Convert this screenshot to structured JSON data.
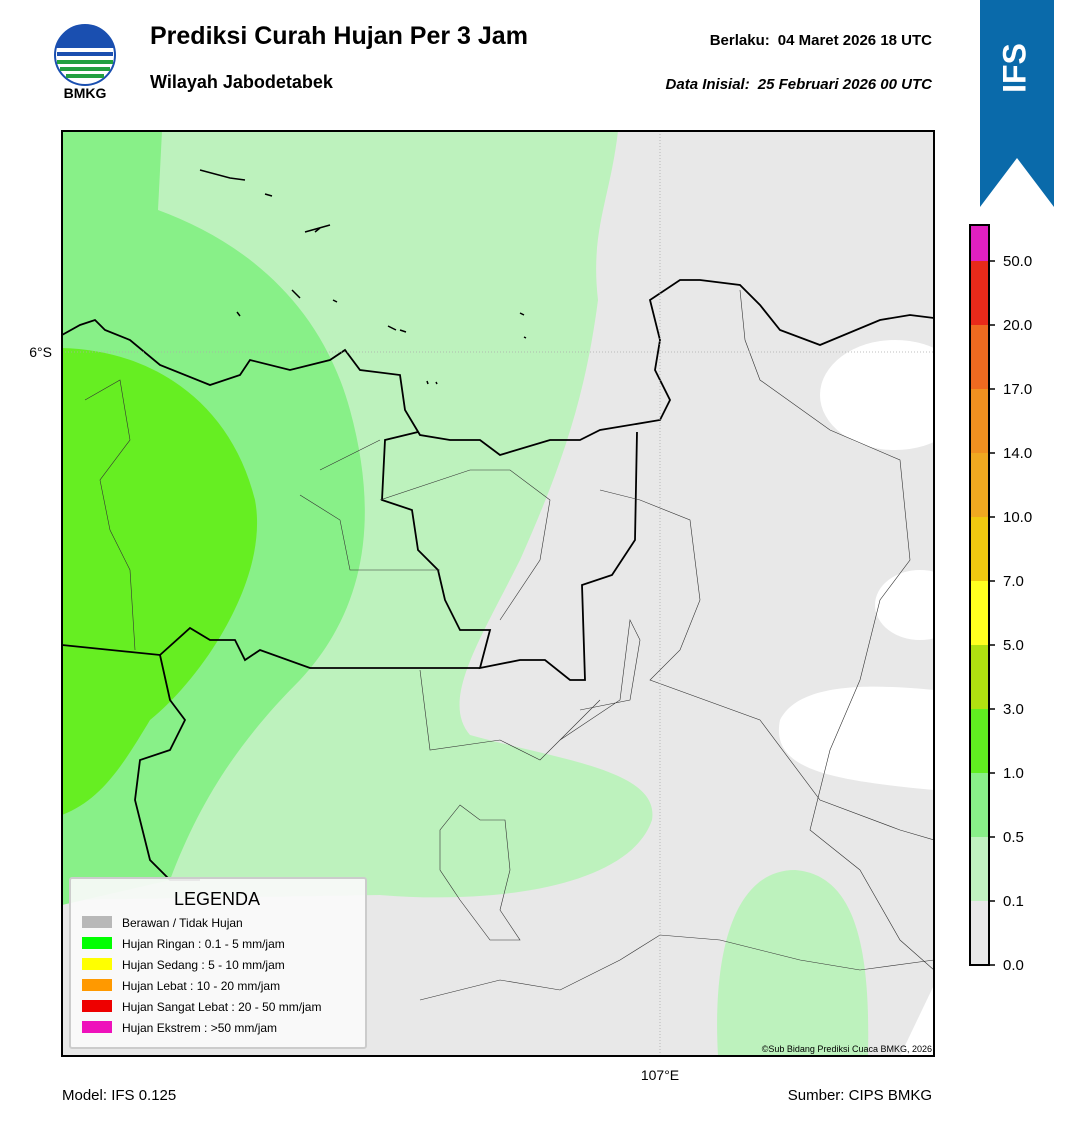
{
  "header": {
    "logo_text": "BMKG",
    "title": "Prediksi Curah Hujan Per 3 Jam",
    "subtitle": "Wilayah Jabodetabek",
    "valid_label": "Berlaku:",
    "valid_time": "04 Maret 2026 18 UTC",
    "init_label": "Data Inisial:",
    "init_time": "25 Februari 2026 00 UTC"
  },
  "badge": "IFS",
  "map": {
    "lat_label": "6°S",
    "lon_label": "107°E",
    "credit": "©Sub Bidang Prediksi Cuaca BMKG, 2026"
  },
  "legend": {
    "title": "LEGENDA",
    "items": [
      {
        "label": "Berawan / Tidak Hujan",
        "color": "#b8b8b8"
      },
      {
        "label": "Hujan Ringan : 0.1 - 5 mm/jam",
        "color": "#00ff00"
      },
      {
        "label": "Hujan Sedang : 5 - 10 mm/jam",
        "color": "#ffff00"
      },
      {
        "label": "Hujan Lebat : 10 - 20 mm/jam",
        "color": "#ff9900"
      },
      {
        "label": "Hujan Sangat Lebat : 20 - 50 mm/jam",
        "color": "#ee0000"
      },
      {
        "label": "Hujan Ekstrem : >50 mm/jam",
        "color": "#ee11bb"
      }
    ]
  },
  "colorbar": {
    "ticks": [
      {
        "value": 0,
        "label": "0.0"
      },
      {
        "value": 0.1,
        "label": "0.1"
      },
      0.5,
      {
        "value": 1,
        "label": "1.0"
      },
      {
        "value": 3,
        "label": "3.0"
      },
      {
        "value": 5,
        "label": "5.0"
      },
      {
        "value": 7,
        "label": "7.0"
      },
      {
        "value": 10,
        "label": "10.0"
      },
      {
        "value": 14,
        "label": "14.0"
      },
      {
        "value": 17,
        "label": "17.0"
      },
      {
        "value": 20,
        "label": "20.0"
      },
      {
        "value": 50,
        "label": "50.0"
      }
    ],
    "colors": [
      "#e8e8e8",
      "#c0f2c0",
      "#88f088",
      "#60ee20",
      "#b0e010",
      "#ffff20",
      "#f0c810",
      "#f0a820",
      "#f09020",
      "#ee6a20",
      "#e82a1a",
      "#e020c0"
    ]
  },
  "footer": {
    "model": "Model: IFS 0.125",
    "source": "Sumber: CIPS BMKG"
  }
}
